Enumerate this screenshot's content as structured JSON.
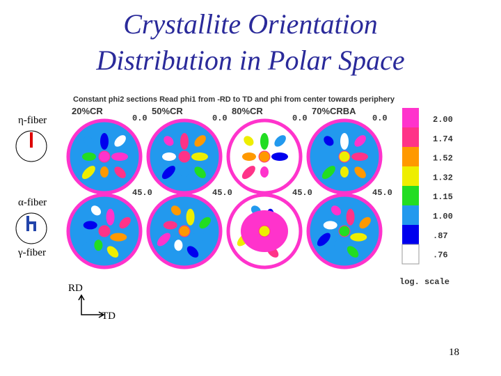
{
  "title": [
    "Crystallite Orientation",
    "Distribution in Polar Space"
  ],
  "fibers": [
    "η-fiber",
    "α-fiber",
    "γ-fiber"
  ],
  "figure": {
    "header": "Constant phi2 sections   Read phi1 from -RD to TD and phi from center towards periphery",
    "samples": [
      "20%CR",
      "50%CR",
      "80%CR",
      "70%CRBA"
    ],
    "sections": [
      "0.0",
      "45.0"
    ],
    "legend": {
      "values": [
        "2.00",
        "1.74",
        "1.52",
        "1.32",
        "1.15",
        "1.00",
        ".87",
        ".76"
      ],
      "note": "log. scale"
    }
  },
  "axes": {
    "rd": "RD",
    "td": "TD"
  },
  "page_number": "18"
}
